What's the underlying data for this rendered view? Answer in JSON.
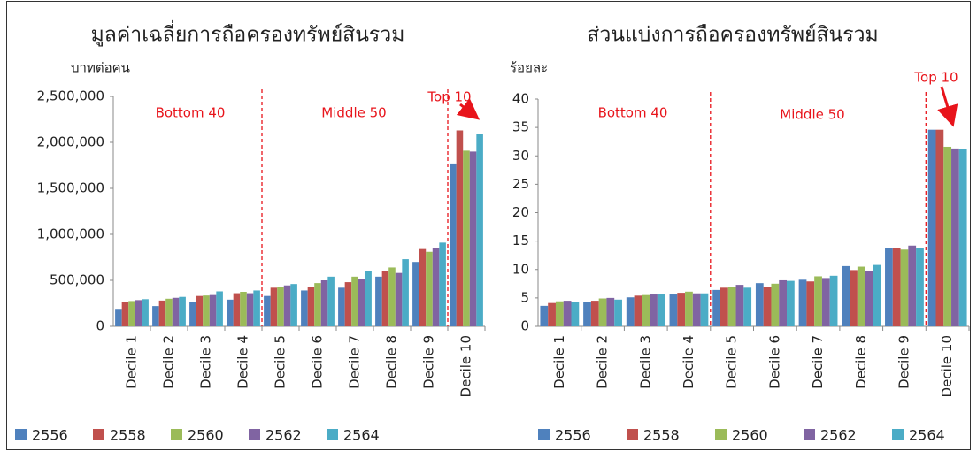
{
  "chart_data": [
    {
      "type": "bar",
      "title": "มูลค่าเฉลี่ยการถือครองทรัพย์สินรวม",
      "y_label": "บาทต่อคน",
      "annotations": [
        "Bottom 40",
        "Middle 50",
        "Top 10"
      ],
      "categories": [
        "Decile 1",
        "Decile 2",
        "Decile 3",
        "Decile 4",
        "Decile 5",
        "Decile 6",
        "Decile 7",
        "Decile 8",
        "Decile 9",
        "Decile 10"
      ],
      "series": [
        {
          "name": "2556",
          "color": "#4f81bd",
          "values": [
            190000,
            220000,
            260000,
            290000,
            330000,
            390000,
            420000,
            540000,
            700000,
            1770000
          ]
        },
        {
          "name": "2558",
          "color": "#c0504d",
          "values": [
            260000,
            280000,
            330000,
            360000,
            420000,
            430000,
            480000,
            600000,
            840000,
            2130000
          ]
        },
        {
          "name": "2560",
          "color": "#9bbb59",
          "values": [
            275000,
            300000,
            335000,
            375000,
            425000,
            470000,
            540000,
            640000,
            810000,
            1910000
          ]
        },
        {
          "name": "2562",
          "color": "#8064a2",
          "values": [
            285000,
            310000,
            340000,
            360000,
            445000,
            500000,
            510000,
            580000,
            850000,
            1900000
          ]
        },
        {
          "name": "2564",
          "color": "#4bacc6",
          "values": [
            295000,
            320000,
            380000,
            390000,
            460000,
            540000,
            600000,
            730000,
            910000,
            2090000
          ]
        }
      ],
      "ylim": [
        0,
        2500000
      ],
      "yticks": [
        0,
        {
          "value": 500000,
          "label": "500,000"
        },
        {
          "value": 1000000,
          "label": "1,000,000"
        },
        {
          "value": 1500000,
          "label": "1,500,000"
        },
        {
          "value": 2000000,
          "label": "2,000,000"
        },
        {
          "value": 2500000,
          "label": "2,500,000"
        }
      ]
    },
    {
      "type": "bar",
      "title": "ส่วนแบ่งการถือครองทรัพย์สินรวม",
      "y_label": "ร้อยละ",
      "annotations": [
        "Bottom 40",
        "Middle 50",
        "Top 10"
      ],
      "categories": [
        "Decile 1",
        "Decile 2",
        "Decile 3",
        "Decile 4",
        "Decile 5",
        "Decile 6",
        "Decile 7",
        "Decile 8",
        "Decile 9",
        "Decile 10"
      ],
      "series": [
        {
          "name": "2556",
          "color": "#4f81bd",
          "values": [
            3.6,
            4.3,
            5.1,
            5.6,
            6.4,
            7.6,
            8.2,
            10.6,
            13.8,
            34.6
          ]
        },
        {
          "name": "2558",
          "color": "#c0504d",
          "values": [
            4.1,
            4.5,
            5.4,
            5.9,
            6.8,
            6.9,
            7.9,
            9.9,
            13.8,
            34.6
          ]
        },
        {
          "name": "2560",
          "color": "#9bbb59",
          "values": [
            4.4,
            4.9,
            5.5,
            6.1,
            7.0,
            7.5,
            8.8,
            10.5,
            13.5,
            31.6
          ]
        },
        {
          "name": "2562",
          "color": "#8064a2",
          "values": [
            4.5,
            5.0,
            5.6,
            5.8,
            7.3,
            8.1,
            8.5,
            9.7,
            14.2,
            31.3
          ]
        },
        {
          "name": "2564",
          "color": "#4bacc6",
          "values": [
            4.3,
            4.7,
            5.6,
            5.8,
            6.8,
            8.0,
            8.9,
            10.8,
            13.8,
            31.2
          ]
        }
      ],
      "ylim": [
        0,
        40
      ],
      "yticks": [
        0,
        5,
        10,
        15,
        20,
        25,
        30,
        35,
        40
      ]
    }
  ]
}
